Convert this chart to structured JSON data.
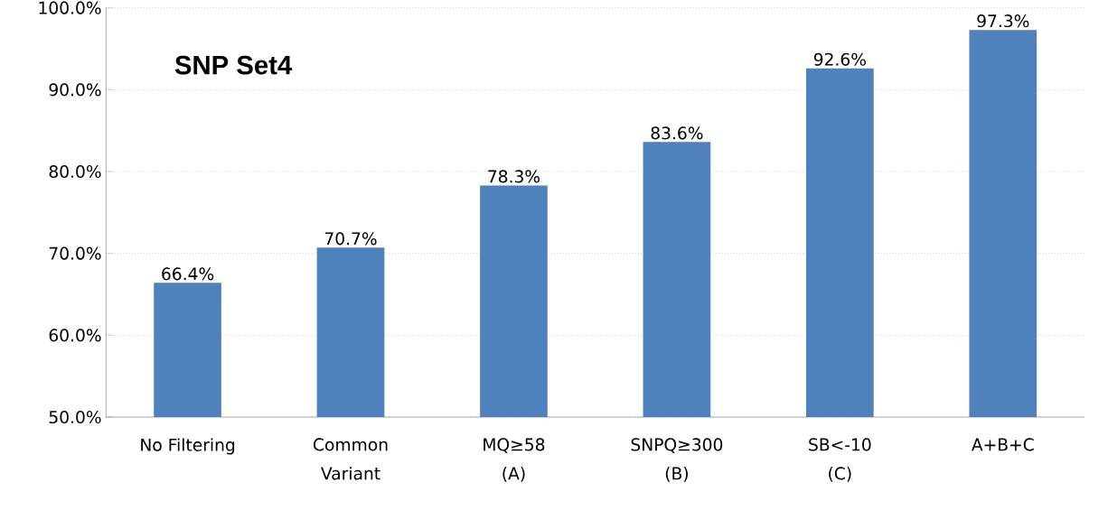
{
  "chart_data": {
    "type": "bar",
    "title": "SNP Set4",
    "categories": [
      "No Filtering",
      "Common\nVariant",
      "MQ≥58\n(A)",
      "SNPQ≥300\n(B)",
      "SB<-10\n(C)",
      "A+B+C"
    ],
    "values": [
      66.4,
      70.7,
      78.3,
      83.6,
      92.6,
      97.3
    ],
    "value_labels": [
      "66.4%",
      "70.7%",
      "78.3%",
      "83.6%",
      "92.6%",
      "97.3%"
    ],
    "color": "#4f81bd",
    "ylim": [
      50,
      100
    ],
    "yticks": [
      {
        "value": 50,
        "label": "50.0%"
      },
      {
        "value": 60,
        "label": "60.0%"
      },
      {
        "value": 70,
        "label": "70.0%"
      },
      {
        "value": 80,
        "label": "80.0%"
      },
      {
        "value": 90,
        "label": "90.0%"
      },
      {
        "value": 100,
        "label": "100.0%"
      }
    ],
    "grid": "y"
  }
}
